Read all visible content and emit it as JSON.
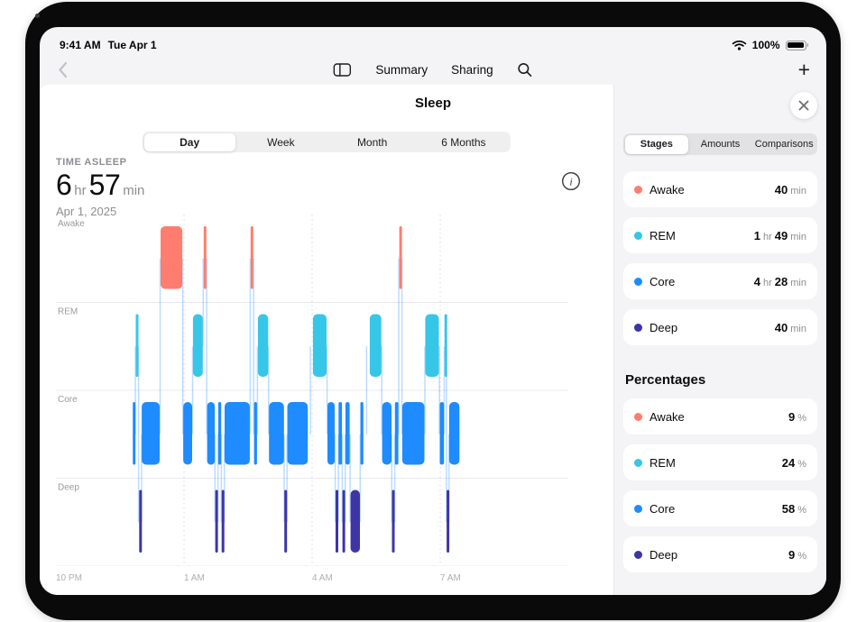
{
  "status_bar": {
    "time": "9:41 AM",
    "date": "Tue Apr 1",
    "battery_percent": "100%"
  },
  "nav": {
    "summary": "Summary",
    "sharing": "Sharing",
    "add": "+"
  },
  "sheet": {
    "title": "Sleep",
    "range_tabs": [
      {
        "label": "Day",
        "selected": true
      },
      {
        "label": "Week",
        "selected": false
      },
      {
        "label": "Month",
        "selected": false
      },
      {
        "label": "6 Months",
        "selected": false
      }
    ],
    "metric": {
      "label": "TIME ASLEEP",
      "value": "6 hr 57 min",
      "date": "Apr 1, 2025"
    }
  },
  "chart_data": {
    "type": "hypnogram",
    "lanes": [
      "Awake",
      "REM",
      "Core",
      "Deep"
    ],
    "lane_colors": {
      "Awake": "#ff7d6e",
      "REM": "#36c6e8",
      "Core": "#1e8bff",
      "Deep": "#3d35a6"
    },
    "x_range_hours": [
      0,
      12
    ],
    "x_ticks": [
      {
        "t": 0,
        "label": "10 PM"
      },
      {
        "t": 3,
        "label": "1 AM"
      },
      {
        "t": 6,
        "label": "4 AM"
      },
      {
        "t": 9,
        "label": "7 AM"
      }
    ],
    "segments": [
      {
        "stage": "Core",
        "start": 1.8,
        "end": 1.85
      },
      {
        "stage": "REM",
        "start": 1.87,
        "end": 1.92
      },
      {
        "stage": "Deep",
        "start": 1.95,
        "end": 2.0
      },
      {
        "stage": "Core",
        "start": 2.01,
        "end": 2.43
      },
      {
        "stage": "Awake",
        "start": 2.45,
        "end": 2.96
      },
      {
        "stage": "Core",
        "start": 2.98,
        "end": 3.19
      },
      {
        "stage": "REM",
        "start": 3.21,
        "end": 3.44
      },
      {
        "stage": "Awake",
        "start": 3.46,
        "end": 3.52
      },
      {
        "stage": "Core",
        "start": 3.54,
        "end": 3.72
      },
      {
        "stage": "Deep",
        "start": 3.73,
        "end": 3.79
      },
      {
        "stage": "Core",
        "start": 3.8,
        "end": 3.87
      },
      {
        "stage": "Deep",
        "start": 3.88,
        "end": 3.94
      },
      {
        "stage": "Core",
        "start": 3.95,
        "end": 4.54
      },
      {
        "stage": "Awake",
        "start": 4.56,
        "end": 4.62
      },
      {
        "stage": "Core",
        "start": 4.64,
        "end": 4.71
      },
      {
        "stage": "REM",
        "start": 4.73,
        "end": 4.97
      },
      {
        "stage": "Core",
        "start": 4.99,
        "end": 5.34
      },
      {
        "stage": "Deep",
        "start": 5.35,
        "end": 5.41
      },
      {
        "stage": "Core",
        "start": 5.42,
        "end": 5.9
      },
      {
        "stage": "REM",
        "start": 6.02,
        "end": 6.34
      },
      {
        "stage": "Core",
        "start": 6.36,
        "end": 6.53
      },
      {
        "stage": "Deep",
        "start": 6.55,
        "end": 6.61
      },
      {
        "stage": "Core",
        "start": 6.62,
        "end": 6.7
      },
      {
        "stage": "Deep",
        "start": 6.71,
        "end": 6.77
      },
      {
        "stage": "Core",
        "start": 6.78,
        "end": 6.88
      },
      {
        "stage": "Deep",
        "start": 6.9,
        "end": 7.12
      },
      {
        "stage": "Core",
        "start": 7.13,
        "end": 7.2
      },
      {
        "stage": "REM",
        "start": 7.35,
        "end": 7.62
      },
      {
        "stage": "Core",
        "start": 7.64,
        "end": 7.86
      },
      {
        "stage": "Deep",
        "start": 7.87,
        "end": 7.93
      },
      {
        "stage": "Core",
        "start": 7.94,
        "end": 8.02
      },
      {
        "stage": "Awake",
        "start": 8.04,
        "end": 8.1
      },
      {
        "stage": "Core",
        "start": 8.11,
        "end": 8.63
      },
      {
        "stage": "REM",
        "start": 8.65,
        "end": 8.97
      },
      {
        "stage": "Core",
        "start": 8.99,
        "end": 9.09
      },
      {
        "stage": "REM",
        "start": 9.1,
        "end": 9.14
      },
      {
        "stage": "Deep",
        "start": 9.15,
        "end": 9.2
      },
      {
        "stage": "Core",
        "start": 9.21,
        "end": 9.45
      }
    ]
  },
  "panel": {
    "tabs": [
      {
        "label": "Stages",
        "selected": true
      },
      {
        "label": "Amounts",
        "selected": false
      },
      {
        "label": "Comparisons",
        "selected": false
      }
    ],
    "durations": [
      {
        "stage": "Awake",
        "color": "#ff7d6e",
        "value": "40 min"
      },
      {
        "stage": "REM",
        "color": "#36c6e8",
        "value": "1 hr 49 min"
      },
      {
        "stage": "Core",
        "color": "#1e8bff",
        "value": "4 hr 28 min"
      },
      {
        "stage": "Deep",
        "color": "#3d35a6",
        "value": "40 min"
      }
    ],
    "percent_title": "Percentages",
    "percentages": [
      {
        "stage": "Awake",
        "color": "#ff7d6e",
        "value": "9%"
      },
      {
        "stage": "REM",
        "color": "#36c6e8",
        "value": "24%"
      },
      {
        "stage": "Core",
        "color": "#1e8bff",
        "value": "58%"
      },
      {
        "stage": "Deep",
        "color": "#3d35a6",
        "value": "9%"
      }
    ]
  }
}
